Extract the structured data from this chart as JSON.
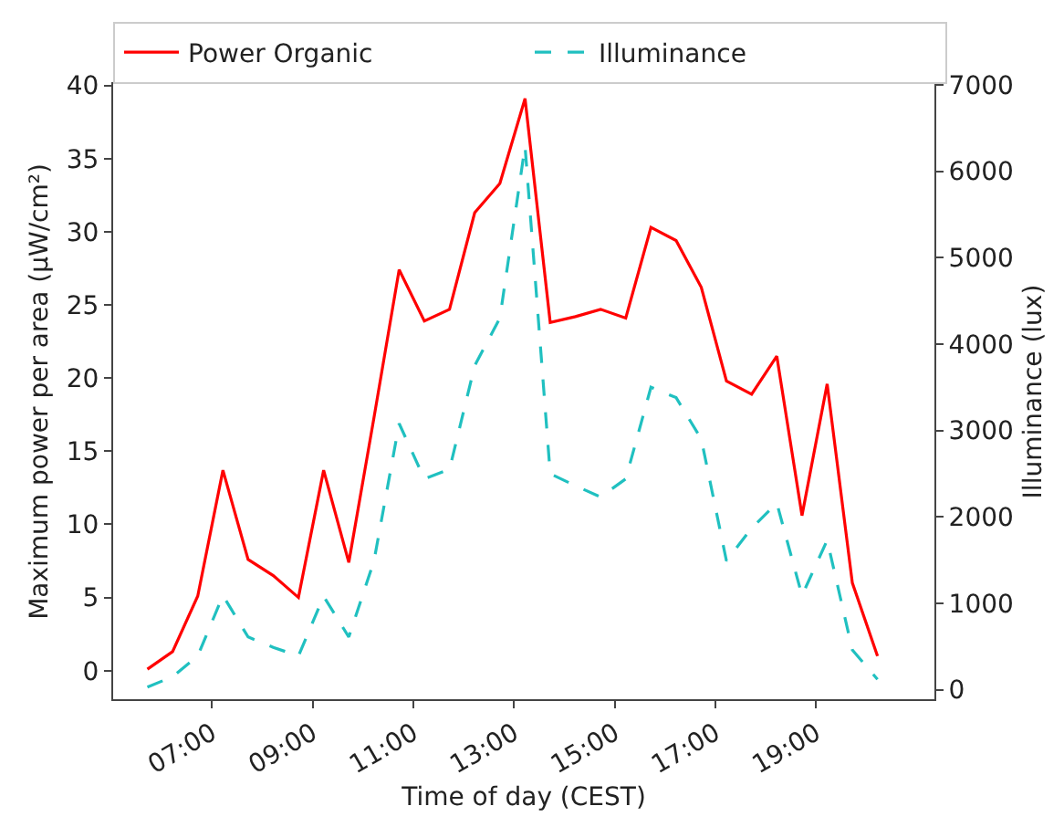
{
  "chart_data": {
    "type": "line",
    "xlabel": "Time of day (CEST)",
    "ylabel": "Maximum power per area (µW/cm²)",
    "y2label": "Illuminance (lux)",
    "x": [
      5.72,
      6.22,
      6.72,
      7.22,
      7.72,
      8.22,
      8.72,
      9.22,
      9.72,
      10.22,
      10.72,
      11.22,
      11.72,
      12.22,
      12.72,
      13.22,
      13.72,
      14.22,
      14.72,
      15.22,
      15.72,
      16.22,
      16.72,
      17.22,
      17.72,
      18.22,
      18.72,
      19.22,
      19.72,
      20.22
    ],
    "series": [
      {
        "name": "Power Organic",
        "color": "#ff0000",
        "line_style": "solid",
        "values": [
          0.1,
          1.3,
          5.1,
          13.7,
          7.6,
          6.5,
          5.0,
          13.7,
          7.4,
          17.3,
          27.4,
          23.9,
          24.7,
          31.3,
          33.3,
          39.1,
          23.8,
          24.2,
          24.7,
          24.1,
          30.3,
          29.4,
          26.2,
          19.8,
          18.9,
          21.5,
          10.6,
          19.6,
          6.0,
          1.0
        ]
      },
      {
        "name": "Illuminance",
        "color": "#20c0c0",
        "line_style": "dashed",
        "axis": "y2",
        "values": [
          30,
          150,
          390,
          1090,
          610,
          490,
          390,
          1080,
          610,
          1490,
          3080,
          2440,
          2550,
          3750,
          4300,
          6290,
          2500,
          2360,
          2230,
          2440,
          3500,
          3380,
          2900,
          1490,
          1870,
          2160,
          1090,
          1730,
          460,
          120
        ]
      }
    ],
    "xlim": [
      5.04,
      21.35
    ],
    "xticks": [
      {
        "value": 7,
        "label": "07:00"
      },
      {
        "value": 9,
        "label": "09:00"
      },
      {
        "value": 11,
        "label": "11:00"
      },
      {
        "value": 13,
        "label": "13:00"
      },
      {
        "value": 15,
        "label": "15:00"
      },
      {
        "value": 17,
        "label": "17:00"
      },
      {
        "value": 19,
        "label": "19:00"
      }
    ],
    "ylim": [
      -1.95,
      40.1
    ],
    "yticks": [
      0,
      5,
      10,
      15,
      20,
      25,
      30,
      35,
      40
    ],
    "y2lim": [
      -110,
      7010
    ],
    "y2ticks": [
      0,
      1000,
      2000,
      3000,
      4000,
      5000,
      6000,
      7000
    ],
    "legend": "top"
  }
}
